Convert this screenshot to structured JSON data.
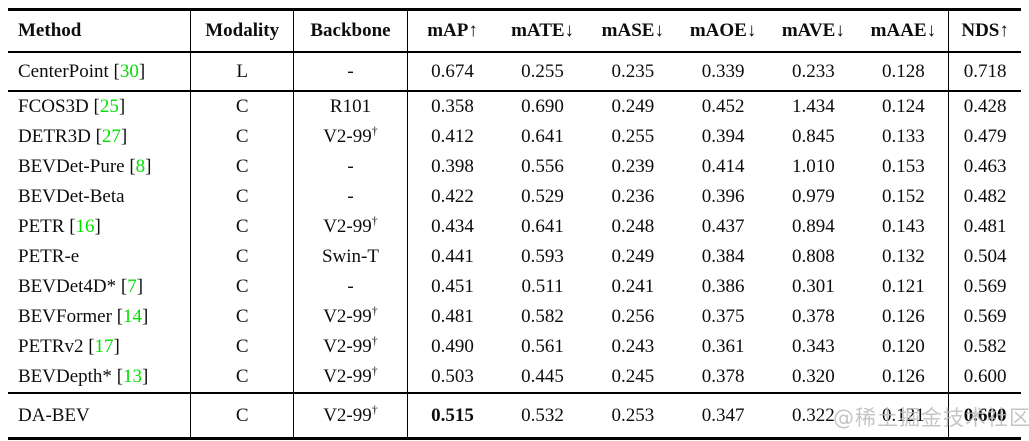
{
  "colors": {
    "background": "#ffffff",
    "text": "#0d0d0d",
    "rule": "#000000",
    "citation": "#00e000",
    "watermark": "#b9b9b9"
  },
  "watermark": {
    "text": "@稀土掘金技术社区"
  },
  "table": {
    "columns": [
      {
        "key": "method",
        "label": "Method",
        "arrow": ""
      },
      {
        "key": "modality",
        "label": "Modality",
        "arrow": ""
      },
      {
        "key": "backbone",
        "label": "Backbone",
        "arrow": ""
      },
      {
        "key": "map",
        "label": "mAP",
        "arrow": "↑"
      },
      {
        "key": "mate",
        "label": "mATE",
        "arrow": "↓"
      },
      {
        "key": "mase",
        "label": "mASE",
        "arrow": "↓"
      },
      {
        "key": "maoe",
        "label": "mAOE",
        "arrow": "↓"
      },
      {
        "key": "mave",
        "label": "mAVE",
        "arrow": "↓"
      },
      {
        "key": "maae",
        "label": "mAAE",
        "arrow": "↓"
      },
      {
        "key": "nds",
        "label": "NDS",
        "arrow": "↑"
      }
    ],
    "groups": [
      {
        "rows": [
          {
            "method": "CenterPoint",
            "cite": "30",
            "modality": "L",
            "backbone": "-",
            "backbone_sup": "",
            "values": [
              "0.674",
              "0.255",
              "0.235",
              "0.339",
              "0.233",
              "0.128",
              "0.718"
            ],
            "bold": []
          }
        ]
      },
      {
        "rows": [
          {
            "method": "FCOS3D",
            "cite": "25",
            "modality": "C",
            "backbone": "R101",
            "backbone_sup": "",
            "values": [
              "0.358",
              "0.690",
              "0.249",
              "0.452",
              "1.434",
              "0.124",
              "0.428"
            ],
            "bold": []
          },
          {
            "method": "DETR3D",
            "cite": "27",
            "modality": "C",
            "backbone": "V2-99",
            "backbone_sup": "†",
            "values": [
              "0.412",
              "0.641",
              "0.255",
              "0.394",
              "0.845",
              "0.133",
              "0.479"
            ],
            "bold": []
          },
          {
            "method": "BEVDet-Pure",
            "cite": "8",
            "modality": "C",
            "backbone": "-",
            "backbone_sup": "",
            "values": [
              "0.398",
              "0.556",
              "0.239",
              "0.414",
              "1.010",
              "0.153",
              "0.463"
            ],
            "bold": []
          },
          {
            "method": "BEVDet-Beta",
            "cite": "",
            "modality": "C",
            "backbone": "-",
            "backbone_sup": "",
            "values": [
              "0.422",
              "0.529",
              "0.236",
              "0.396",
              "0.979",
              "0.152",
              "0.482"
            ],
            "bold": []
          },
          {
            "method": "PETR",
            "cite": "16",
            "modality": "C",
            "backbone": "V2-99",
            "backbone_sup": "†",
            "values": [
              "0.434",
              "0.641",
              "0.248",
              "0.437",
              "0.894",
              "0.143",
              "0.481"
            ],
            "bold": []
          },
          {
            "method": "PETR-e",
            "cite": "",
            "modality": "C",
            "backbone": "Swin-T",
            "backbone_sup": "",
            "values": [
              "0.441",
              "0.593",
              "0.249",
              "0.384",
              "0.808",
              "0.132",
              "0.504"
            ],
            "bold": []
          },
          {
            "method": "BEVDet4D*",
            "cite": "7",
            "modality": "C",
            "backbone": "-",
            "backbone_sup": "",
            "values": [
              "0.451",
              "0.511",
              "0.241",
              "0.386",
              "0.301",
              "0.121",
              "0.569"
            ],
            "bold": []
          },
          {
            "method": "BEVFormer",
            "cite": "14",
            "modality": "C",
            "backbone": "V2-99",
            "backbone_sup": "†",
            "values": [
              "0.481",
              "0.582",
              "0.256",
              "0.375",
              "0.378",
              "0.126",
              "0.569"
            ],
            "bold": []
          },
          {
            "method": "PETRv2",
            "cite": "17",
            "modality": "C",
            "backbone": "V2-99",
            "backbone_sup": "†",
            "values": [
              "0.490",
              "0.561",
              "0.243",
              "0.361",
              "0.343",
              "0.120",
              "0.582"
            ],
            "bold": []
          },
          {
            "method": "BEVDepth*",
            "cite": "13",
            "modality": "C",
            "backbone": "V2-99",
            "backbone_sup": "†",
            "values": [
              "0.503",
              "0.445",
              "0.245",
              "0.378",
              "0.320",
              "0.126",
              "0.600"
            ],
            "bold": []
          }
        ]
      },
      {
        "rows": [
          {
            "method": "DA-BEV",
            "cite": "",
            "modality": "C",
            "backbone": "V2-99",
            "backbone_sup": "†",
            "values": [
              "0.515",
              "0.532",
              "0.253",
              "0.347",
              "0.322",
              "0.121",
              "0.600"
            ],
            "bold": [
              0,
              6
            ]
          }
        ]
      }
    ]
  }
}
